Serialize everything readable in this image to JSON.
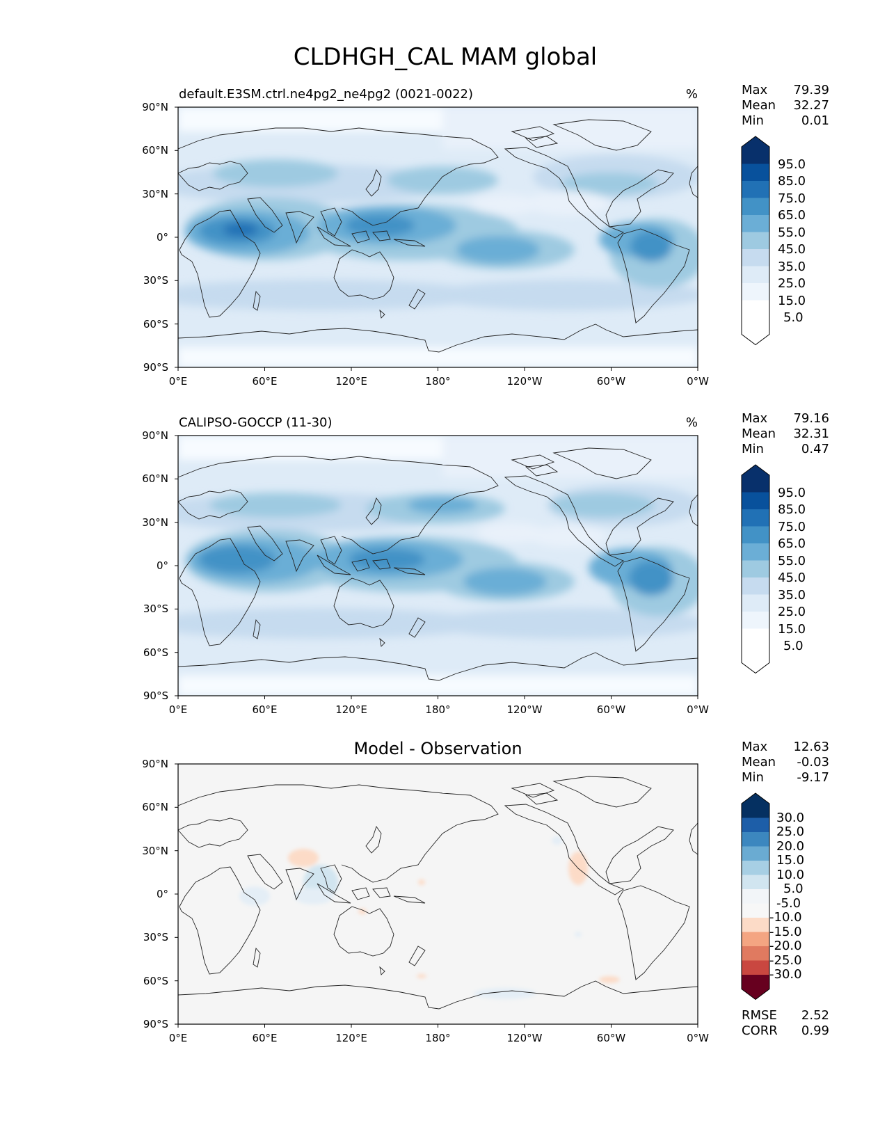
{
  "figure": {
    "title": "CLDHGH_CAL MAM global"
  },
  "x_ticks": [
    "0°E",
    "60°E",
    "120°E",
    "180°",
    "120°W",
    "60°W",
    "0°W"
  ],
  "y_ticks": [
    "90°N",
    "60°N",
    "30°N",
    "0°",
    "30°S",
    "60°S",
    "90°S"
  ],
  "colors": {
    "seq_levels": [
      "#f7fbff",
      "#deebf7",
      "#c6dbef",
      "#9ecae1",
      "#6baed6",
      "#4292c6",
      "#2171b5",
      "#08519c",
      "#08306b"
    ],
    "diff_neg": [
      "#fcdbc7",
      "#f4a582",
      "#e07a60",
      "#c94740",
      "#a50f26",
      "#67001f"
    ],
    "diff_pos": [
      "#e4eef6",
      "#d1e5f0",
      "#a7cfe4",
      "#6aabd2",
      "#3c87bf",
      "#1d5ea8",
      "#053061"
    ],
    "diff_bg": "#f5f5f5"
  },
  "panels": [
    {
      "left_title": "default.E3SM.ctrl.ne4pg2_ne4pg2 (0021-0022)",
      "units": "%",
      "stats": {
        "max_label": "Max",
        "max": "79.39",
        "mean_label": "Mean",
        "mean": "32.27",
        "min_label": "Min",
        "min": "0.01"
      },
      "colorbar_labels": [
        "95.0",
        "85.0",
        "75.0",
        "65.0",
        "55.0",
        "45.0",
        "35.0",
        "25.0",
        "15.0",
        "5.0"
      ]
    },
    {
      "left_title": "CALIPSO-GOCCP (11-30)",
      "units": "%",
      "stats": {
        "max_label": "Max",
        "max": "79.16",
        "mean_label": "Mean",
        "mean": "32.31",
        "min_label": "Min",
        "min": "0.47"
      },
      "colorbar_labels": [
        "95.0",
        "85.0",
        "75.0",
        "65.0",
        "55.0",
        "45.0",
        "35.0",
        "25.0",
        "15.0",
        "5.0"
      ]
    },
    {
      "center_title": "Model - Observation",
      "stats": {
        "max_label": "Max",
        "max": "12.63",
        "mean_label": "Mean",
        "mean": "-0.03",
        "min_label": "Min",
        "min": "-9.17"
      },
      "colorbar_labels": [
        "30.0",
        "25.0",
        "20.0",
        "15.0",
        "10.0",
        "5.0",
        "-5.0",
        "-10.0",
        "-15.0",
        "-20.0",
        "-25.0",
        "-30.0"
      ],
      "extra_stats": {
        "rmse_label": "RMSE",
        "rmse": "2.52",
        "corr_label": "CORR",
        "corr": "0.99"
      }
    }
  ]
}
